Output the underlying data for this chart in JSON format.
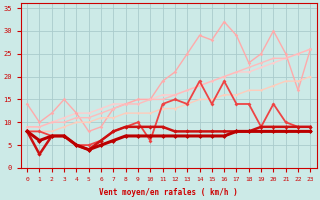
{
  "xlabel": "Vent moyen/en rafales ( km/h )",
  "xlim": [
    -0.5,
    23.5
  ],
  "ylim": [
    0,
    36
  ],
  "yticks": [
    0,
    5,
    10,
    15,
    20,
    25,
    30,
    35
  ],
  "xticks": [
    0,
    1,
    2,
    3,
    4,
    5,
    6,
    7,
    8,
    9,
    10,
    11,
    12,
    13,
    14,
    15,
    16,
    17,
    18,
    19,
    20,
    21,
    22,
    23
  ],
  "background_color": "#cceae7",
  "grid_color": "#aacccc",
  "lines": [
    {
      "x": [
        0,
        1,
        2,
        3,
        4,
        5,
        6,
        7,
        8,
        9,
        10,
        11,
        12,
        13,
        14,
        15,
        16,
        17,
        18,
        19,
        20,
        21,
        22,
        23
      ],
      "y": [
        9,
        9,
        10,
        11,
        12,
        12,
        13,
        14,
        14,
        15,
        15,
        16,
        16,
        17,
        18,
        19,
        20,
        21,
        21,
        22,
        23,
        24,
        25,
        26
      ],
      "color": "#ffcccc",
      "lw": 1.0,
      "marker": "D",
      "ms": 1.5
    },
    {
      "x": [
        0,
        1,
        2,
        3,
        4,
        5,
        6,
        7,
        8,
        9,
        10,
        11,
        12,
        13,
        14,
        15,
        16,
        17,
        18,
        19,
        20,
        21,
        22,
        23
      ],
      "y": [
        14,
        10,
        12,
        15,
        12,
        8,
        9,
        13,
        14,
        15,
        15,
        19,
        21,
        25,
        29,
        28,
        32,
        29,
        23,
        25,
        30,
        25,
        17,
        26
      ],
      "color": "#ffaaaa",
      "lw": 1.0,
      "marker": "D",
      "ms": 1.8
    },
    {
      "x": [
        0,
        1,
        2,
        3,
        4,
        5,
        6,
        7,
        8,
        9,
        10,
        11,
        12,
        13,
        14,
        15,
        16,
        17,
        18,
        19,
        20,
        21,
        22,
        23
      ],
      "y": [
        9,
        9,
        10,
        10,
        11,
        11,
        12,
        13,
        14,
        14,
        15,
        15,
        16,
        17,
        18,
        19,
        20,
        21,
        22,
        23,
        24,
        24,
        25,
        26
      ],
      "color": "#ffbbbb",
      "lw": 1.0,
      "marker": "D",
      "ms": 1.5
    },
    {
      "x": [
        0,
        1,
        2,
        3,
        4,
        5,
        6,
        7,
        8,
        9,
        10,
        11,
        12,
        13,
        14,
        15,
        16,
        17,
        18,
        19,
        20,
        21,
        22,
        23
      ],
      "y": [
        8,
        8,
        8,
        9,
        10,
        10,
        11,
        11,
        12,
        12,
        12,
        13,
        13,
        14,
        15,
        15,
        16,
        16,
        17,
        17,
        18,
        19,
        19,
        20
      ],
      "color": "#ffccbb",
      "lw": 1.0,
      "marker": "D",
      "ms": 1.5
    },
    {
      "x": [
        0,
        1,
        2,
        3,
        4,
        5,
        6,
        7,
        8,
        9,
        10,
        11,
        12,
        13,
        14,
        15,
        16,
        17,
        18,
        19,
        20,
        21,
        22,
        23
      ],
      "y": [
        8,
        8,
        7,
        7,
        5,
        5,
        6,
        8,
        9,
        10,
        6,
        14,
        15,
        14,
        19,
        14,
        19,
        14,
        14,
        9,
        14,
        10,
        9,
        9
      ],
      "color": "#ee4444",
      "lw": 1.3,
      "marker": "D",
      "ms": 2.0
    },
    {
      "x": [
        0,
        1,
        2,
        3,
        4,
        5,
        6,
        7,
        8,
        9,
        10,
        11,
        12,
        13,
        14,
        15,
        16,
        17,
        18,
        19,
        20,
        21,
        22,
        23
      ],
      "y": [
        8,
        3,
        7,
        7,
        5,
        4,
        6,
        8,
        9,
        9,
        9,
        9,
        8,
        8,
        8,
        8,
        8,
        8,
        8,
        9,
        9,
        9,
        9,
        9
      ],
      "color": "#cc1111",
      "lw": 1.8,
      "marker": "D",
      "ms": 2.2
    },
    {
      "x": [
        0,
        1,
        2,
        3,
        4,
        5,
        6,
        7,
        8,
        9,
        10,
        11,
        12,
        13,
        14,
        15,
        16,
        17,
        18,
        19,
        20,
        21,
        22,
        23
      ],
      "y": [
        8,
        6,
        7,
        7,
        5,
        4,
        5,
        6,
        7,
        7,
        7,
        7,
        7,
        7,
        7,
        7,
        7,
        8,
        8,
        8,
        8,
        8,
        8,
        8
      ],
      "color": "#bb0000",
      "lw": 2.2,
      "marker": "D",
      "ms": 2.5
    }
  ]
}
